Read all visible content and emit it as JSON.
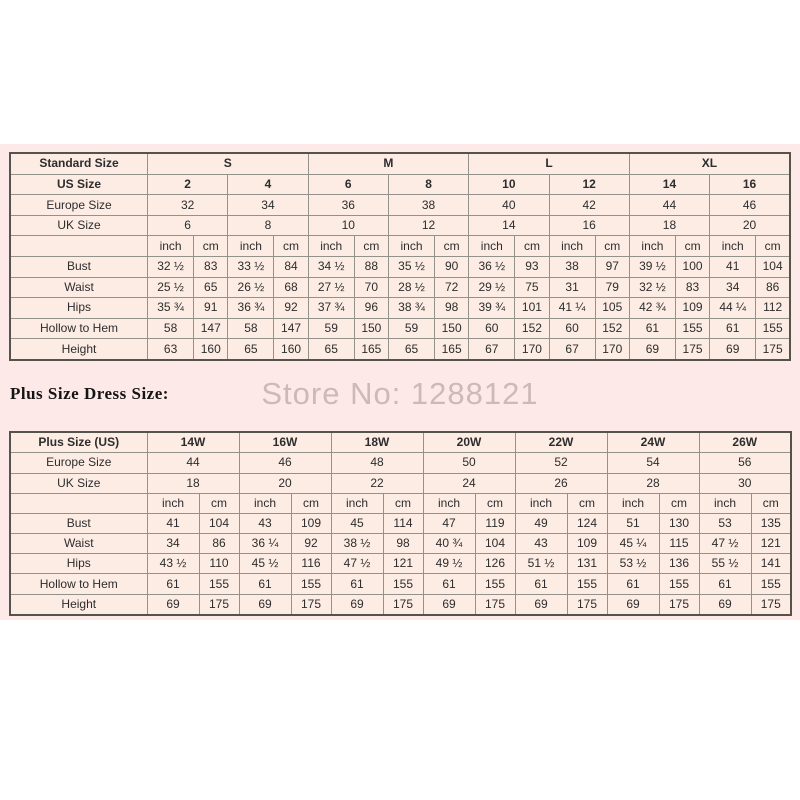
{
  "page": {
    "background_color": "#ffffff",
    "band_color": "#fdeae8",
    "cell_color": "#fcece4",
    "inner_border_color": "#92928a",
    "outer_border_color": "#55544c",
    "text_color": "#2d2d2d"
  },
  "watermark": {
    "text": "Store No: 1288121",
    "color": "#ccbab8"
  },
  "plus_section": {
    "label": "Plus Size Dress Size:"
  },
  "standard_table": {
    "rows": [
      {
        "label": "Standard Size",
        "bold_label": true,
        "bold": true,
        "cells": [
          {
            "t": "S",
            "s": 4
          },
          {
            "t": "M",
            "s": 4
          },
          {
            "t": "L",
            "s": 4
          },
          {
            "t": "XL",
            "s": 4
          }
        ]
      },
      {
        "label": "US Size",
        "bold_label": true,
        "bold": true,
        "cells": [
          {
            "t": "2",
            "s": 2
          },
          {
            "t": "4",
            "s": 2
          },
          {
            "t": "6",
            "s": 2
          },
          {
            "t": "8",
            "s": 2
          },
          {
            "t": "10",
            "s": 2
          },
          {
            "t": "12",
            "s": 2
          },
          {
            "t": "14",
            "s": 2
          },
          {
            "t": "16",
            "s": 2
          }
        ]
      },
      {
        "label": "Europe Size",
        "cells": [
          {
            "t": "32",
            "s": 2
          },
          {
            "t": "34",
            "s": 2
          },
          {
            "t": "36",
            "s": 2
          },
          {
            "t": "38",
            "s": 2
          },
          {
            "t": "40",
            "s": 2
          },
          {
            "t": "42",
            "s": 2
          },
          {
            "t": "44",
            "s": 2
          },
          {
            "t": "46",
            "s": 2
          }
        ]
      },
      {
        "label": "UK Size",
        "cells": [
          {
            "t": "6",
            "s": 2
          },
          {
            "t": "8",
            "s": 2
          },
          {
            "t": "10",
            "s": 2
          },
          {
            "t": "12",
            "s": 2
          },
          {
            "t": "14",
            "s": 2
          },
          {
            "t": "16",
            "s": 2
          },
          {
            "t": "18",
            "s": 2
          },
          {
            "t": "20",
            "s": 2
          }
        ]
      },
      {
        "label": "",
        "cells": [
          {
            "t": "inch"
          },
          {
            "t": "cm"
          },
          {
            "t": "inch"
          },
          {
            "t": "cm"
          },
          {
            "t": "inch"
          },
          {
            "t": "cm"
          },
          {
            "t": "inch"
          },
          {
            "t": "cm"
          },
          {
            "t": "inch"
          },
          {
            "t": "cm"
          },
          {
            "t": "inch"
          },
          {
            "t": "cm"
          },
          {
            "t": "inch"
          },
          {
            "t": "cm"
          },
          {
            "t": "inch"
          },
          {
            "t": "cm"
          }
        ]
      },
      {
        "label": "Bust",
        "cells": [
          {
            "t": "32 ½"
          },
          {
            "t": "83"
          },
          {
            "t": "33 ½"
          },
          {
            "t": "84"
          },
          {
            "t": "34 ½"
          },
          {
            "t": "88"
          },
          {
            "t": "35 ½"
          },
          {
            "t": "90"
          },
          {
            "t": "36 ½"
          },
          {
            "t": "93"
          },
          {
            "t": "38"
          },
          {
            "t": "97"
          },
          {
            "t": "39 ½"
          },
          {
            "t": "100"
          },
          {
            "t": "41"
          },
          {
            "t": "104"
          }
        ]
      },
      {
        "label": "Waist",
        "cells": [
          {
            "t": "25 ½"
          },
          {
            "t": "65"
          },
          {
            "t": "26 ½"
          },
          {
            "t": "68"
          },
          {
            "t": "27 ½"
          },
          {
            "t": "70"
          },
          {
            "t": "28 ½"
          },
          {
            "t": "72"
          },
          {
            "t": "29 ½"
          },
          {
            "t": "75"
          },
          {
            "t": "31"
          },
          {
            "t": "79"
          },
          {
            "t": "32 ½"
          },
          {
            "t": "83"
          },
          {
            "t": "34"
          },
          {
            "t": "86"
          }
        ]
      },
      {
        "label": "Hips",
        "cells": [
          {
            "t": "35 ¾"
          },
          {
            "t": "91"
          },
          {
            "t": "36 ¾"
          },
          {
            "t": "92"
          },
          {
            "t": "37 ¾"
          },
          {
            "t": "96"
          },
          {
            "t": "38 ¾"
          },
          {
            "t": "98"
          },
          {
            "t": "39 ¾"
          },
          {
            "t": "101"
          },
          {
            "t": "41 ¼"
          },
          {
            "t": "105"
          },
          {
            "t": "42 ¾"
          },
          {
            "t": "109"
          },
          {
            "t": "44 ¼"
          },
          {
            "t": "112"
          }
        ]
      },
      {
        "label": "Hollow to Hem",
        "cells": [
          {
            "t": "58"
          },
          {
            "t": "147"
          },
          {
            "t": "58"
          },
          {
            "t": "147"
          },
          {
            "t": "59"
          },
          {
            "t": "150"
          },
          {
            "t": "59"
          },
          {
            "t": "150"
          },
          {
            "t": "60"
          },
          {
            "t": "152"
          },
          {
            "t": "60"
          },
          {
            "t": "152"
          },
          {
            "t": "61"
          },
          {
            "t": "155"
          },
          {
            "t": "61"
          },
          {
            "t": "155"
          }
        ]
      },
      {
        "label": "Height",
        "cells": [
          {
            "t": "63"
          },
          {
            "t": "160"
          },
          {
            "t": "65"
          },
          {
            "t": "160"
          },
          {
            "t": "65"
          },
          {
            "t": "165"
          },
          {
            "t": "65"
          },
          {
            "t": "165"
          },
          {
            "t": "67"
          },
          {
            "t": "170"
          },
          {
            "t": "67"
          },
          {
            "t": "170"
          },
          {
            "t": "69"
          },
          {
            "t": "175"
          },
          {
            "t": "69"
          },
          {
            "t": "175"
          }
        ]
      }
    ]
  },
  "plus_table": {
    "rows": [
      {
        "label": "Plus Size (US)",
        "bold_label": true,
        "bold": true,
        "cells": [
          {
            "t": "14W",
            "s": 2
          },
          {
            "t": "16W",
            "s": 2
          },
          {
            "t": "18W",
            "s": 2
          },
          {
            "t": "20W",
            "s": 2
          },
          {
            "t": "22W",
            "s": 2
          },
          {
            "t": "24W",
            "s": 2
          },
          {
            "t": "26W",
            "s": 2
          }
        ]
      },
      {
        "label": "Europe Size",
        "cells": [
          {
            "t": "44",
            "s": 2
          },
          {
            "t": "46",
            "s": 2
          },
          {
            "t": "48",
            "s": 2
          },
          {
            "t": "50",
            "s": 2
          },
          {
            "t": "52",
            "s": 2
          },
          {
            "t": "54",
            "s": 2
          },
          {
            "t": "56",
            "s": 2
          }
        ]
      },
      {
        "label": "UK Size",
        "cells": [
          {
            "t": "18",
            "s": 2
          },
          {
            "t": "20",
            "s": 2
          },
          {
            "t": "22",
            "s": 2
          },
          {
            "t": "24",
            "s": 2
          },
          {
            "t": "26",
            "s": 2
          },
          {
            "t": "28",
            "s": 2
          },
          {
            "t": "30",
            "s": 2
          }
        ]
      },
      {
        "label": "",
        "cells": [
          {
            "t": "inch"
          },
          {
            "t": "cm"
          },
          {
            "t": "inch"
          },
          {
            "t": "cm"
          },
          {
            "t": "inch"
          },
          {
            "t": "cm"
          },
          {
            "t": "inch"
          },
          {
            "t": "cm"
          },
          {
            "t": "inch"
          },
          {
            "t": "cm"
          },
          {
            "t": "inch"
          },
          {
            "t": "cm"
          },
          {
            "t": "inch"
          },
          {
            "t": "cm"
          }
        ]
      },
      {
        "label": "Bust",
        "cells": [
          {
            "t": "41"
          },
          {
            "t": "104"
          },
          {
            "t": "43"
          },
          {
            "t": "109"
          },
          {
            "t": "45"
          },
          {
            "t": "114"
          },
          {
            "t": "47"
          },
          {
            "t": "119"
          },
          {
            "t": "49"
          },
          {
            "t": "124"
          },
          {
            "t": "51"
          },
          {
            "t": "130"
          },
          {
            "t": "53"
          },
          {
            "t": "135"
          }
        ]
      },
      {
        "label": "Waist",
        "cells": [
          {
            "t": "34"
          },
          {
            "t": "86"
          },
          {
            "t": "36 ¼"
          },
          {
            "t": "92"
          },
          {
            "t": "38 ½"
          },
          {
            "t": "98"
          },
          {
            "t": "40 ¾"
          },
          {
            "t": "104"
          },
          {
            "t": "43"
          },
          {
            "t": "109"
          },
          {
            "t": "45 ¼"
          },
          {
            "t": "115"
          },
          {
            "t": "47 ½"
          },
          {
            "t": "121"
          }
        ]
      },
      {
        "label": "Hips",
        "cells": [
          {
            "t": "43 ½"
          },
          {
            "t": "110"
          },
          {
            "t": "45 ½"
          },
          {
            "t": "116"
          },
          {
            "t": "47 ½"
          },
          {
            "t": "121"
          },
          {
            "t": "49 ½"
          },
          {
            "t": "126"
          },
          {
            "t": "51 ½"
          },
          {
            "t": "131"
          },
          {
            "t": "53 ½"
          },
          {
            "t": "136"
          },
          {
            "t": "55 ½"
          },
          {
            "t": "141"
          }
        ]
      },
      {
        "label": "Hollow to Hem",
        "cells": [
          {
            "t": "61"
          },
          {
            "t": "155"
          },
          {
            "t": "61"
          },
          {
            "t": "155"
          },
          {
            "t": "61"
          },
          {
            "t": "155"
          },
          {
            "t": "61"
          },
          {
            "t": "155"
          },
          {
            "t": "61"
          },
          {
            "t": "155"
          },
          {
            "t": "61"
          },
          {
            "t": "155"
          },
          {
            "t": "61"
          },
          {
            "t": "155"
          }
        ]
      },
      {
        "label": "Height",
        "cells": [
          {
            "t": "69"
          },
          {
            "t": "175"
          },
          {
            "t": "69"
          },
          {
            "t": "175"
          },
          {
            "t": "69"
          },
          {
            "t": "175"
          },
          {
            "t": "69"
          },
          {
            "t": "175"
          },
          {
            "t": "69"
          },
          {
            "t": "175"
          },
          {
            "t": "69"
          },
          {
            "t": "175"
          },
          {
            "t": "69"
          },
          {
            "t": "175"
          }
        ]
      }
    ]
  }
}
